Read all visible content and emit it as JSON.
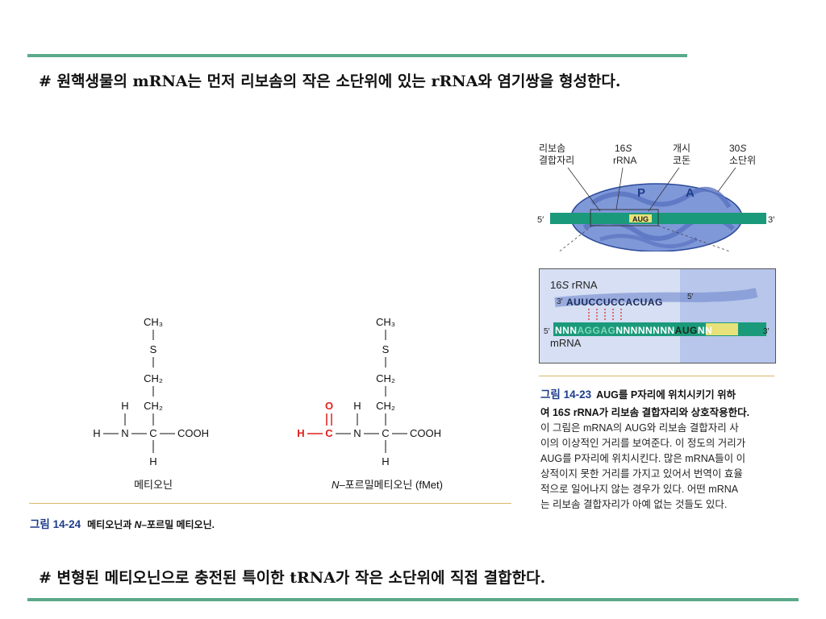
{
  "top_heading": "# 원핵생물의 mRNA는 먼저 리보솜의 작은 소단위에  있는 rRNA와 염기쌍을 형성한다.",
  "bottom_heading": "# 변형된 메티오닌으로 충전된 특이한 tRNA가 작은 소단위에 직접 결합한다.",
  "colors": {
    "rule": "#5aa98a",
    "mrna": "#1a9a7a",
    "ribosome": "#7f98d8",
    "caption_label": "#1e3d8a",
    "formyl": "#e0201c"
  },
  "structures": {
    "ch3": "CH₃",
    "s": "S",
    "ch2": "CH₂",
    "h": "H",
    "n": "N",
    "c": "C",
    "o": "O",
    "cooh": "COOH",
    "met_name": "메티오닌",
    "fmet_italic": "N",
    "fmet_name": "–포르밀메티오닌 (fMet)"
  },
  "fig24": {
    "label": "그림 14-24",
    "title_pre": "메티오닌과 ",
    "title_italic": "N",
    "title_post": "–포르밀 메티오닌."
  },
  "ribosome": {
    "lbl_binding": [
      "리보솜",
      "결합자리"
    ],
    "lbl_16s_num": "16",
    "lbl_16s_s": "S",
    "lbl_16s_rrna": "rRNA",
    "lbl_start": [
      "개시",
      "코돈"
    ],
    "lbl_30s_num": "30",
    "lbl_30s_s": "S",
    "lbl_30s_sub": "소단위",
    "site_p": "P",
    "site_a": "A",
    "aug": "AUG",
    "five_prime": "5′",
    "three_prime": "3′"
  },
  "zoom": {
    "rrna_label_num": "16",
    "rrna_label_s": "S",
    "rrna_label_rest": " rRNA",
    "rrna_3": "3′",
    "rrna_seq": "AUUCCUCCACUAG",
    "rrna_5": "5′",
    "mrna_5": "5′",
    "mrna_seq_pre": "NNN",
    "mrna_seq_sd": "AGGAG",
    "mrna_seq_mid": "NNNNNNNN",
    "mrna_seq_aug": "AUG",
    "mrna_seq_post": "NN",
    "mrna_3": "3′",
    "mrna_label": "mRNA"
  },
  "fig23": {
    "label": "그림 14-23",
    "title_line1": "AUG를 P자리에 위치시키기 위하",
    "title_line2_pre": "여 16",
    "title_line2_s": "S",
    "title_line2_post": " rRNA가 리보솜 결합자리와 상호작용한다.",
    "body": [
      "이 그림은 mRNA의 AUG와 리보솜 결합자리 사",
      "이의 이상적인 거리를 보여준다. 이 정도의 거리가",
      "AUG를 P자리에 위치시킨다. 많은 mRNA들이 이",
      "상적이지 못한 거리를 가지고 있어서 번역이 효율",
      "적으로 일어나지 않는 경우가 있다. 어떤 mRNA",
      "는 리보솜 결합자리가 아예 없는 것들도 있다."
    ]
  }
}
